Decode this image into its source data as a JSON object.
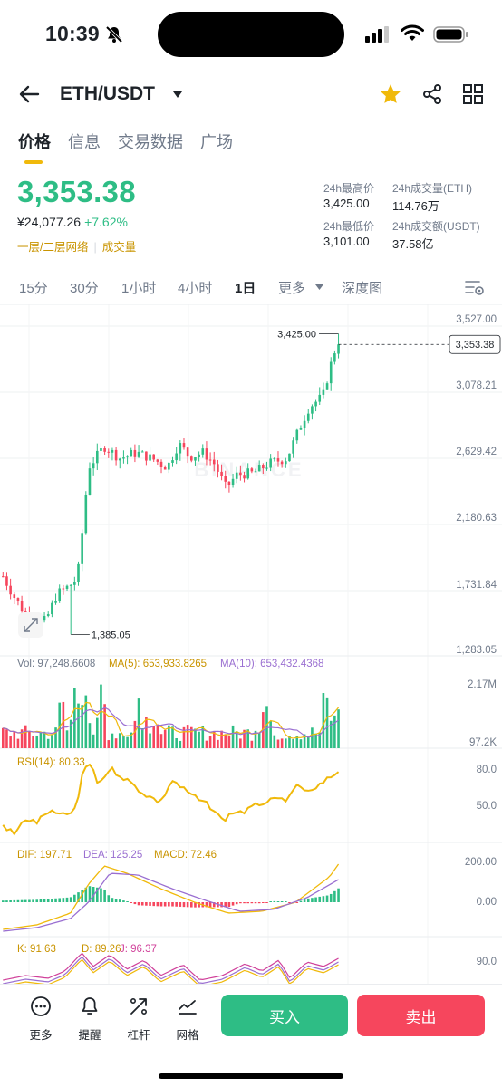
{
  "status_bar": {
    "time": "10:39"
  },
  "header": {
    "pair": "ETH/USDT",
    "icons": [
      "back-arrow-icon",
      "caret-down-icon",
      "star-icon",
      "share-icon",
      "grid-icon"
    ],
    "star_color": "#f0b90b"
  },
  "tabs": [
    "价格",
    "信息",
    "交易数据",
    "广场"
  ],
  "active_tab": "价格",
  "price": {
    "last": "3,353.38",
    "cny": "¥24,077.26",
    "change": "+7.62%",
    "tag1": "一层/二层网络",
    "tag2": "成交量",
    "up_color": "#2ebd85",
    "down_color": "#f6465d"
  },
  "stats": {
    "high_label": "24h最高价",
    "high": "3,425.00",
    "vol_eth_label": "24h成交量(ETH)",
    "vol_eth": "114.76万",
    "low_label": "24h最低价",
    "low": "3,101.00",
    "vol_usdt_label": "24h成交额(USDT)",
    "vol_usdt": "37.58亿"
  },
  "intervals": [
    "15分",
    "30分",
    "1小时",
    "4小时",
    "1日",
    "更多",
    "深度图"
  ],
  "active_interval": "1日",
  "chart_data": {
    "type": "candlestick",
    "price_axis": [
      "3,527.00",
      "3,078.21",
      "2,629.42",
      "2,180.63",
      "1,731.84",
      "1,283.05"
    ],
    "ylim": [
      1283.05,
      3527.0
    ],
    "current_price": "3,353.38",
    "high_marker": "3,425.00",
    "low_marker": "1,385.05",
    "watermark": "BINANCE",
    "volume": {
      "label": "Vol: 97,248.6608",
      "ma5": "MA(5): 653,933.8265",
      "ma10": "MA(10): 653,432.4368",
      "axis_top": "2.17M",
      "axis_bottom": "97.2K"
    },
    "rsi": {
      "label": "RSI(14): 80.33",
      "axis": [
        "80.0",
        "50.0"
      ]
    },
    "macd": {
      "dif": "DIF: 197.71",
      "dea": "DEA: 125.25",
      "macd": "MACD: 72.46",
      "axis": [
        "200.00",
        "0.00"
      ]
    },
    "kdj": {
      "k": "K: 91.63",
      "d": "D: 89.26",
      "j": "J: 96.37",
      "axis": [
        "90.0"
      ]
    }
  },
  "bottom": {
    "tools": [
      "更多",
      "提醒",
      "杠杆",
      "网格"
    ],
    "buy": "买入",
    "sell": "卖出"
  }
}
